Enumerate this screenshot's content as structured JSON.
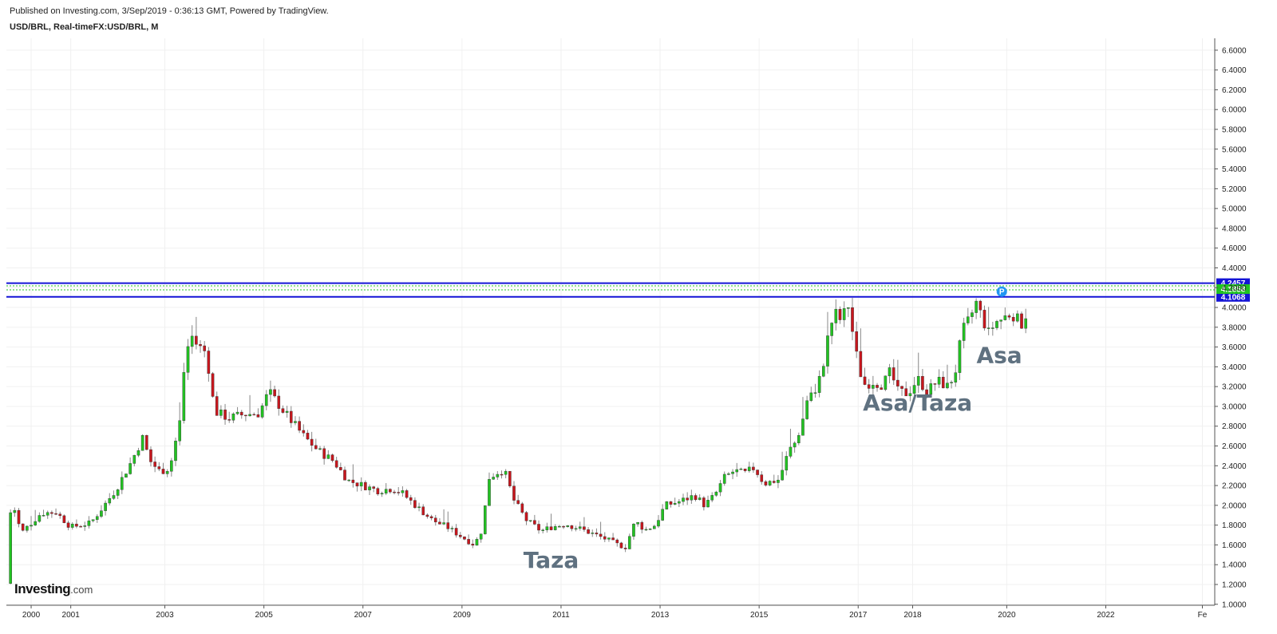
{
  "header": {
    "published": "Published on Investing.com, 3/Sep/2019 - 0:36:13 GMT, Powered by TradingView.",
    "symbol": "USD/BRL, Real-timeFX:USD/BRL, M"
  },
  "logo": {
    "main": "Investing",
    "suffix": ".com"
  },
  "colors": {
    "up": "#22c322",
    "down": "#c8161d",
    "level": "#1414d6",
    "current": "#22c322",
    "pmark": "#2196f3"
  },
  "chart_data": {
    "type": "candlestick",
    "x_ticks": [
      "2000",
      "2001",
      "2003",
      "2005",
      "2007",
      "2009",
      "2011",
      "2013",
      "2015",
      "2017",
      "2018",
      "2020",
      "2022",
      "Fe"
    ],
    "y_ticks": [
      "1.0000",
      "1.2000",
      "1.4000",
      "1.6000",
      "1.8000",
      "2.0000",
      "2.2000",
      "2.4000",
      "2.6000",
      "2.8000",
      "3.0000",
      "3.2000",
      "3.4000",
      "3.6000",
      "3.8000",
      "4.0000",
      "4.2000",
      "4.4000",
      "4.6000",
      "4.8000",
      "5.0000",
      "5.2000",
      "5.4000",
      "5.6000",
      "5.8000",
      "6.0000",
      "6.2000",
      "6.4000",
      "6.6000"
    ],
    "ylim": [
      0.99,
      6.72
    ],
    "xlim": [
      1999.0,
      2023.4
    ],
    "levels": [
      {
        "value": 4.2457,
        "label": "4.2457",
        "style": "solid"
      },
      {
        "value": 4.1068,
        "label": "4.1068",
        "style": "solid"
      }
    ],
    "current_price": {
      "value": 4.1858,
      "label": "4.1858"
    },
    "marker": {
      "date": 2019.1,
      "value": 4.16,
      "text": "P"
    },
    "annotations": [
      {
        "text": "Taza",
        "date": 2010.0,
        "value": 1.37,
        "size": 28
      },
      {
        "text": "Asa/Taza",
        "date": 2017.4,
        "value": 2.96,
        "size": 28
      },
      {
        "text": "Asa",
        "date": 2019.05,
        "value": 3.44,
        "size": 28
      }
    ],
    "anchors": [
      [
        1999.0,
        1.21
      ],
      [
        1999.1,
        2.07
      ],
      [
        1999.3,
        1.72
      ],
      [
        1999.7,
        1.92
      ],
      [
        2000.0,
        1.93
      ],
      [
        2000.3,
        1.78
      ],
      [
        2000.7,
        1.82
      ],
      [
        2000.9,
        1.95
      ],
      [
        2001.2,
        2.15
      ],
      [
        2001.5,
        2.42
      ],
      [
        2001.75,
        2.68
      ],
      [
        2001.9,
        2.45
      ],
      [
        2002.1,
        2.34
      ],
      [
        2002.3,
        2.38
      ],
      [
        2002.5,
        2.84
      ],
      [
        2002.6,
        3.45
      ],
      [
        2002.72,
        3.73
      ],
      [
        2002.85,
        3.62
      ],
      [
        2003.0,
        3.56
      ],
      [
        2003.1,
        3.35
      ],
      [
        2003.2,
        2.95
      ],
      [
        2003.5,
        2.88
      ],
      [
        2003.8,
        2.92
      ],
      [
        2004.1,
        2.93
      ],
      [
        2004.3,
        3.15
      ],
      [
        2004.6,
        2.95
      ],
      [
        2005.0,
        2.7
      ],
      [
        2005.3,
        2.55
      ],
      [
        2005.6,
        2.45
      ],
      [
        2005.9,
        2.25
      ],
      [
        2006.2,
        2.2
      ],
      [
        2006.5,
        2.15
      ],
      [
        2006.8,
        2.17
      ],
      [
        2007.0,
        2.12
      ],
      [
        2007.3,
        1.98
      ],
      [
        2007.6,
        1.85
      ],
      [
        2007.9,
        1.78
      ],
      [
        2008.2,
        1.68
      ],
      [
        2008.45,
        1.6
      ],
      [
        2008.6,
        1.75
      ],
      [
        2008.75,
        2.28
      ],
      [
        2008.9,
        2.33
      ],
      [
        2009.05,
        2.36
      ],
      [
        2009.25,
        2.05
      ],
      [
        2009.5,
        1.85
      ],
      [
        2009.8,
        1.74
      ],
      [
        2010.0,
        1.78
      ],
      [
        2010.3,
        1.81
      ],
      [
        2010.6,
        1.76
      ],
      [
        2010.9,
        1.7
      ],
      [
        2011.1,
        1.66
      ],
      [
        2011.35,
        1.6
      ],
      [
        2011.5,
        1.58
      ],
      [
        2011.7,
        1.84
      ],
      [
        2011.9,
        1.75
      ],
      [
        2012.1,
        1.8
      ],
      [
        2012.3,
        2.0
      ],
      [
        2012.6,
        2.04
      ],
      [
        2012.9,
        2.1
      ],
      [
        2013.1,
        2.0
      ],
      [
        2013.3,
        2.1
      ],
      [
        2013.5,
        2.28
      ],
      [
        2013.7,
        2.35
      ],
      [
        2013.9,
        2.32
      ],
      [
        2014.1,
        2.38
      ],
      [
        2014.3,
        2.22
      ],
      [
        2014.6,
        2.26
      ],
      [
        2014.8,
        2.55
      ],
      [
        2014.95,
        2.65
      ],
      [
        2015.1,
        2.9
      ],
      [
        2015.2,
        3.15
      ],
      [
        2015.35,
        3.12
      ],
      [
        2015.5,
        3.45
      ],
      [
        2015.6,
        3.73
      ],
      [
        2015.72,
        3.95
      ],
      [
        2015.85,
        3.87
      ],
      [
        2016.0,
        4.02
      ],
      [
        2016.15,
        3.55
      ],
      [
        2016.3,
        3.22
      ],
      [
        2016.5,
        3.25
      ],
      [
        2016.7,
        3.22
      ],
      [
        2016.85,
        3.35
      ],
      [
        2017.0,
        3.15
      ],
      [
        2017.2,
        3.13
      ],
      [
        2017.4,
        3.28
      ],
      [
        2017.6,
        3.15
      ],
      [
        2017.8,
        3.26
      ],
      [
        2018.0,
        3.2
      ],
      [
        2018.15,
        3.32
      ],
      [
        2018.3,
        3.75
      ],
      [
        2018.45,
        3.88
      ],
      [
        2018.58,
        4.05
      ],
      [
        2018.7,
        3.9
      ],
      [
        2018.85,
        3.72
      ],
      [
        2018.95,
        3.85
      ],
      [
        2019.1,
        3.88
      ],
      [
        2019.3,
        3.95
      ],
      [
        2019.45,
        3.85
      ],
      [
        2019.55,
        3.83
      ],
      [
        2019.66,
        4.16
      ]
    ]
  }
}
